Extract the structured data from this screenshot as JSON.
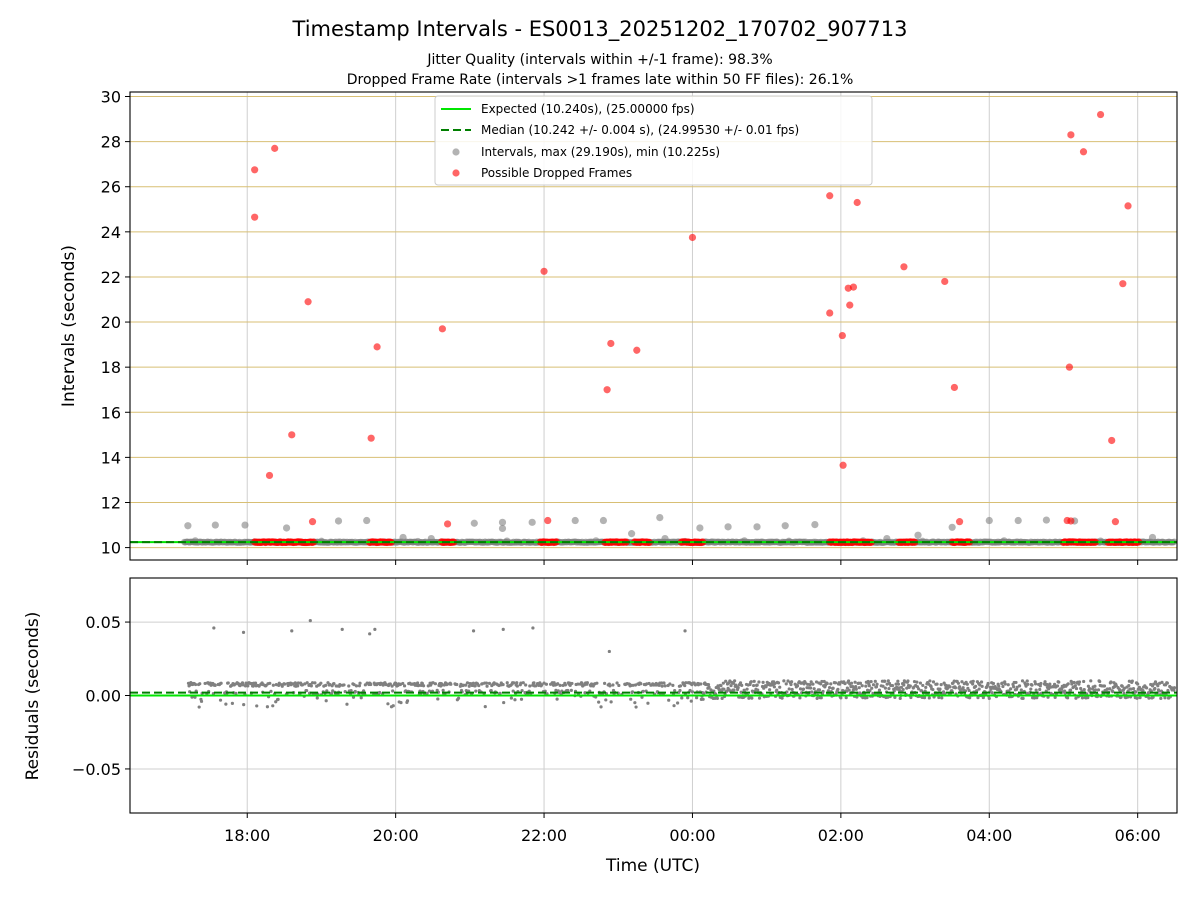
{
  "chart_data": {
    "title": "Timestamp Intervals - ES0013_20251202_170702_907713",
    "subtitle_lines": [
      "Jitter Quality (intervals within +/-1 frame): 98.3%",
      "Dropped Frame Rate (intervals >1 frames late within 50 FF files): 26.1%"
    ],
    "xlabel": "Time (UTC)",
    "x_ticks": [
      "18:00",
      "20:00",
      "22:00",
      "00:00",
      "02:00",
      "04:00",
      "06:00"
    ],
    "colors": {
      "expected": "#00e600",
      "median": "#007f00",
      "intervals": "#808080",
      "dropped": "#ff0000",
      "hgrid_top": "#d8bf74",
      "grid": "#cfcfcf"
    },
    "top": {
      "type": "scatter",
      "ylabel": "Intervals (seconds)",
      "ylim": [
        9.45,
        30.2
      ],
      "y_ticks": [
        10,
        12,
        14,
        16,
        18,
        20,
        22,
        24,
        26,
        28,
        30
      ],
      "y_tick_labels": [
        "10",
        "12",
        "14",
        "16",
        "18",
        "20",
        "22",
        "24",
        "26",
        "28",
        "30"
      ],
      "expected_value": 10.24,
      "median_value": 10.242,
      "legend": {
        "placement": "top-center",
        "entries": [
          "Expected (10.240s), (25.00000 fps)",
          "Median (10.242 +/- 0.004 s), (24.99530 +/- 0.01 fps)",
          "Intervals, max (29.190s), min (10.225s)",
          "Possible Dropped Frames"
        ]
      },
      "intervals_points": [
        [
          17.2,
          10.97
        ],
        [
          17.57,
          11.0
        ],
        [
          17.97,
          11.0
        ],
        [
          18.53,
          10.87
        ],
        [
          19.23,
          11.18
        ],
        [
          19.61,
          11.2
        ],
        [
          20.1,
          10.45
        ],
        [
          20.48,
          10.4
        ],
        [
          21.06,
          11.08
        ],
        [
          21.44,
          11.12
        ],
        [
          21.44,
          10.85
        ],
        [
          21.84,
          11.12
        ],
        [
          22.42,
          11.2
        ],
        [
          22.8,
          11.2
        ],
        [
          23.18,
          10.62
        ],
        [
          23.56,
          11.33
        ],
        [
          23.63,
          10.4
        ],
        [
          24.1,
          10.87
        ],
        [
          24.48,
          10.92
        ],
        [
          24.87,
          10.92
        ],
        [
          25.25,
          10.97
        ],
        [
          25.65,
          11.02
        ],
        [
          26.62,
          10.4
        ],
        [
          27.04,
          10.55
        ],
        [
          27.5,
          10.9
        ],
        [
          28.0,
          11.2
        ],
        [
          28.39,
          11.2
        ],
        [
          28.77,
          11.22
        ],
        [
          29.15,
          11.18
        ],
        [
          30.2,
          10.45
        ],
        [
          17.3,
          10.3
        ],
        [
          18.1,
          10.25
        ],
        [
          19.0,
          10.28
        ],
        [
          20.3,
          10.27
        ],
        [
          21.5,
          10.29
        ],
        [
          22.7,
          10.3
        ],
        [
          23.9,
          10.27
        ],
        [
          24.7,
          10.3
        ],
        [
          25.3,
          10.28
        ],
        [
          26.3,
          10.3
        ],
        [
          27.1,
          10.28
        ],
        [
          28.2,
          10.3
        ],
        [
          29.5,
          10.29
        ]
      ],
      "dropped_points": [
        [
          18.1,
          26.75
        ],
        [
          18.1,
          24.65
        ],
        [
          18.3,
          13.2
        ],
        [
          18.37,
          27.7
        ],
        [
          18.6,
          15.0
        ],
        [
          18.82,
          20.9
        ],
        [
          18.88,
          11.15
        ],
        [
          19.67,
          14.85
        ],
        [
          19.75,
          18.9
        ],
        [
          20.63,
          19.7
        ],
        [
          20.7,
          11.05
        ],
        [
          22.0,
          22.25
        ],
        [
          22.05,
          11.2
        ],
        [
          22.85,
          17.0
        ],
        [
          22.9,
          19.05
        ],
        [
          23.25,
          18.75
        ],
        [
          24.0,
          23.75
        ],
        [
          25.85,
          25.6
        ],
        [
          25.85,
          20.4
        ],
        [
          26.02,
          19.4
        ],
        [
          26.03,
          13.65
        ],
        [
          26.1,
          21.5
        ],
        [
          26.12,
          20.75
        ],
        [
          26.17,
          21.55
        ],
        [
          26.22,
          25.3
        ],
        [
          26.85,
          22.45
        ],
        [
          27.4,
          21.8
        ],
        [
          27.53,
          17.1
        ],
        [
          27.6,
          11.15
        ],
        [
          29.1,
          28.3
        ],
        [
          29.05,
          11.2
        ],
        [
          29.1,
          11.18
        ],
        [
          29.08,
          18.0
        ],
        [
          29.27,
          27.55
        ],
        [
          29.5,
          29.2
        ],
        [
          29.65,
          14.75
        ],
        [
          29.7,
          11.15
        ],
        [
          29.8,
          21.7
        ],
        [
          29.87,
          25.15
        ]
      ],
      "dropped_clusters": [
        [
          18.1,
          18.9
        ],
        [
          19.65,
          19.95
        ],
        [
          20.62,
          20.8
        ],
        [
          21.95,
          22.18
        ],
        [
          22.82,
          23.12
        ],
        [
          23.22,
          23.42
        ],
        [
          23.85,
          24.15
        ],
        [
          25.85,
          26.42
        ],
        [
          26.78,
          27.0
        ],
        [
          27.5,
          27.75
        ],
        [
          29.0,
          29.45
        ],
        [
          29.6,
          30.03
        ]
      ]
    },
    "bottom": {
      "type": "scatter",
      "ylabel": "Residuals (seconds)",
      "ylim": [
        -0.08,
        0.08
      ],
      "y_ticks": [
        -0.05,
        0,
        0.05
      ],
      "y_tick_labels": [
        "−0.05",
        "0.00",
        "0.05"
      ],
      "expected_value": 0,
      "median_value": 0.002,
      "outlier_points": [
        [
          17.55,
          0.046
        ],
        [
          17.95,
          0.043
        ],
        [
          18.6,
          0.044
        ],
        [
          18.85,
          0.051
        ],
        [
          19.28,
          0.045
        ],
        [
          19.65,
          0.042
        ],
        [
          19.72,
          0.045
        ],
        [
          21.05,
          0.044
        ],
        [
          21.45,
          0.045
        ],
        [
          21.85,
          0.046
        ],
        [
          22.88,
          0.03
        ],
        [
          23.9,
          0.044
        ]
      ]
    }
  }
}
